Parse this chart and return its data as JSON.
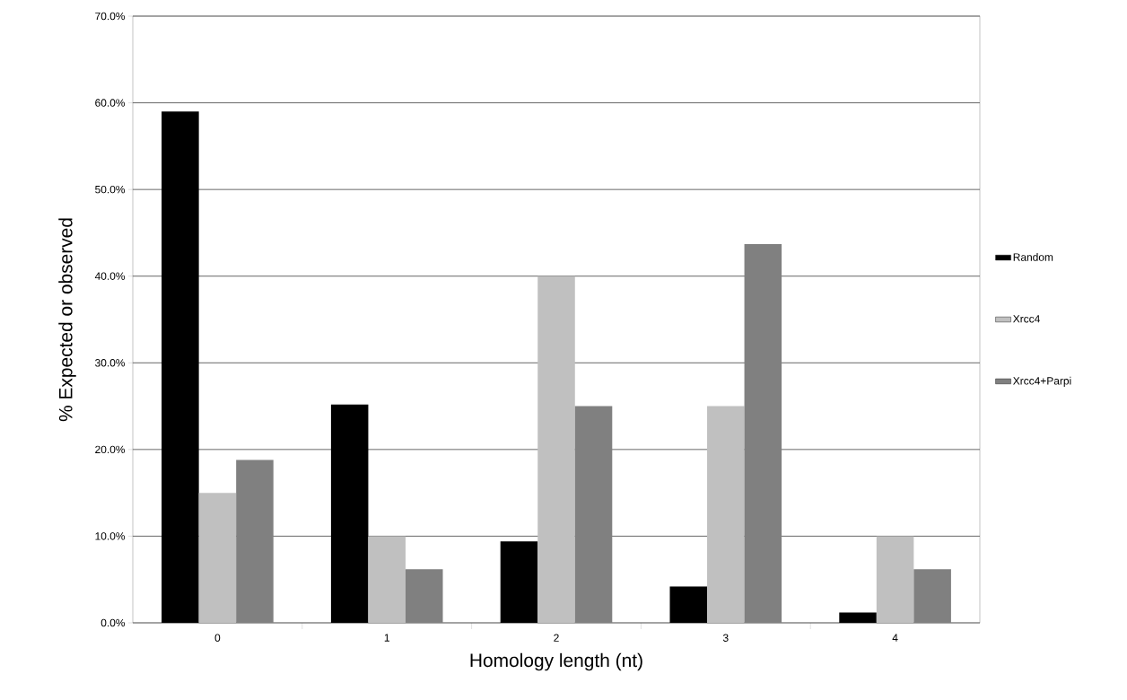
{
  "chart_data": {
    "type": "bar",
    "xlabel": "Homology length (nt)",
    "ylabel": "% Expected or observed",
    "categories": [
      "0",
      "1",
      "2",
      "3",
      "4"
    ],
    "series": [
      {
        "name": "Random",
        "color": "#000000",
        "values": [
          59.0,
          25.2,
          9.4,
          4.2,
          1.2
        ]
      },
      {
        "name": "Xrcc4",
        "color": "#c0c0c0",
        "values": [
          15.0,
          10.0,
          40.0,
          25.0,
          10.0
        ]
      },
      {
        "name": "Xrcc4+Parpi",
        "color": "#808080",
        "values": [
          18.8,
          6.2,
          25.0,
          43.7,
          6.2
        ]
      }
    ],
    "ylim": [
      0,
      70
    ],
    "yticks": [
      {
        "value": 0,
        "label": "0.0%"
      },
      {
        "value": 10,
        "label": "10.0%"
      },
      {
        "value": 20,
        "label": "20.0%"
      },
      {
        "value": 30,
        "label": "30.0%"
      },
      {
        "value": 40,
        "label": "40.0%"
      },
      {
        "value": 50,
        "label": "50.0%"
      },
      {
        "value": 60,
        "label": "60.0%"
      },
      {
        "value": 70,
        "label": "70.0%"
      }
    ],
    "grid": "y",
    "legend": "right"
  }
}
